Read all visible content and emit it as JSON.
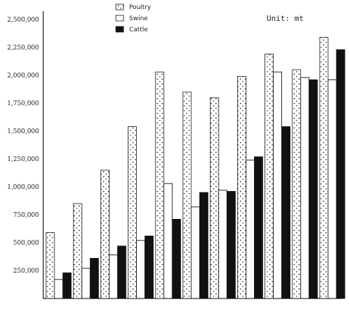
{
  "chart_data": {
    "type": "bar",
    "unit": "Unit:  mt",
    "legend": [
      "Poultry",
      "Swine",
      "Cattle"
    ],
    "legend_placement": "top-left",
    "ylim": [
      0,
      2600000
    ],
    "yticks": [
      "250,000",
      "500,000",
      "750,000",
      "1,000,000",
      "1,250,000",
      "1,500,000",
      "1,750,000",
      "2,000,000",
      "2,250,000",
      "2,500,000"
    ],
    "ytick_values": [
      250000,
      500000,
      750000,
      1000000,
      1250000,
      1500000,
      1750000,
      2000000,
      2250000,
      2500000
    ],
    "categories": [
      "",
      "",
      "",
      "",
      "",
      "",
      "",
      "",
      "",
      "",
      ""
    ],
    "series": [
      {
        "name": "Poultry",
        "values": [
          590000,
          850000,
          1150000,
          1540000,
          2030000,
          1850000,
          1800000,
          1990000,
          2190000,
          2050000,
          2340000
        ]
      },
      {
        "name": "Swine",
        "values": [
          170000,
          270000,
          390000,
          520000,
          1030000,
          820000,
          970000,
          1240000,
          2030000,
          1980000,
          1960000
        ]
      },
      {
        "name": "Cattle",
        "values": [
          230000,
          360000,
          470000,
          560000,
          710000,
          950000,
          960000,
          1270000,
          1540000,
          1960000,
          2230000
        ]
      }
    ],
    "grid": false
  }
}
